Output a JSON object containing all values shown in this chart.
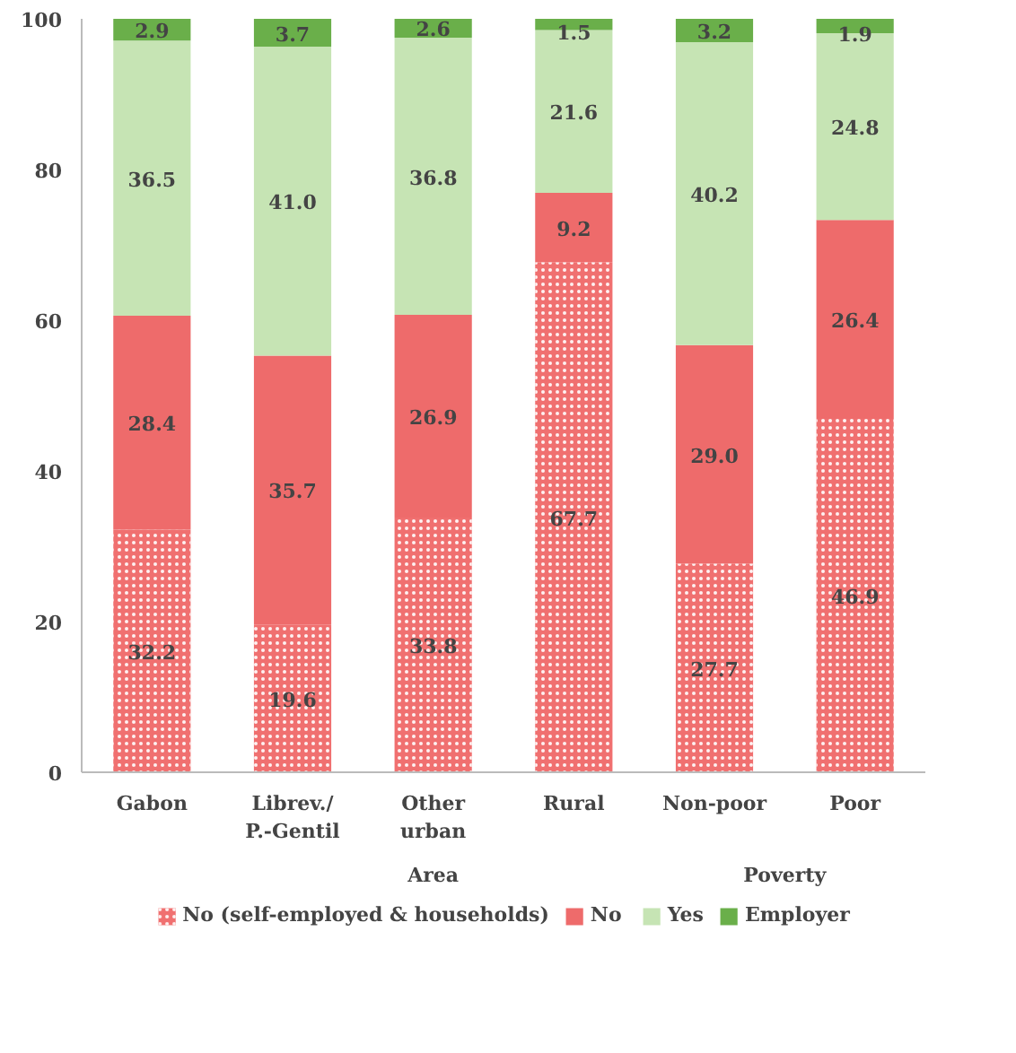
{
  "chart_data": {
    "type": "bar",
    "stacked": true,
    "categories": [
      "Gabon",
      "Librev./ P.-Gentil",
      "Other urban",
      "Rural",
      "Non-poor",
      "Poor"
    ],
    "series": [
      {
        "name": "No (self-employed & households)",
        "color": "#f07070",
        "values": [
          32.2,
          19.6,
          33.8,
          67.7,
          27.7,
          46.9
        ]
      },
      {
        "name": "No",
        "color": "#ee6b6b",
        "values": [
          28.4,
          35.7,
          26.9,
          9.2,
          29.0,
          26.4
        ]
      },
      {
        "name": "Yes",
        "color": "#c6e4b4",
        "values": [
          36.5,
          41.0,
          36.8,
          21.6,
          40.2,
          24.8
        ]
      },
      {
        "name": "Employer",
        "color": "#6aaf4a",
        "values": [
          2.9,
          3.7,
          2.6,
          1.5,
          3.2,
          1.9
        ]
      }
    ],
    "annotations": [
      "Area",
      "Poverty"
    ],
    "ylim": [
      0,
      100
    ],
    "yticks": [
      0,
      20,
      40,
      60,
      80,
      100
    ],
    "grid": false,
    "legend": "bottom",
    "value_labels": [
      [
        "32.2",
        "19.6",
        "33.8",
        "67.7",
        "27.7",
        "46.9"
      ],
      [
        "28.4",
        "35.7",
        "26.9",
        "9.2",
        "29.0",
        "26.4"
      ],
      [
        "36.5",
        "41.0",
        "36.8",
        "21.6",
        "40.2",
        "24.8"
      ],
      [
        "2.9",
        "3.7",
        "2.6",
        "1.5",
        "3.2",
        "1.9"
      ]
    ]
  }
}
